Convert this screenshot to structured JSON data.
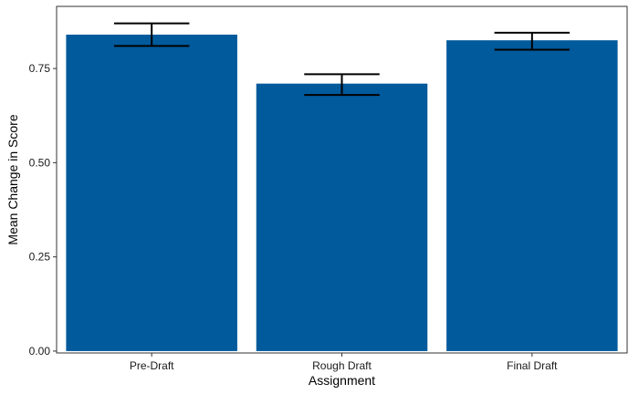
{
  "chart_data": {
    "type": "bar",
    "title": "",
    "xlabel": "Assignment",
    "ylabel": "Mean Change in Score",
    "categories": [
      "Pre-Draft",
      "Rough Draft",
      "Final Draft"
    ],
    "values": [
      0.84,
      0.71,
      0.825
    ],
    "error_low": [
      0.81,
      0.68,
      0.8
    ],
    "error_high": [
      0.87,
      0.735,
      0.845
    ],
    "ylim": [
      -0.005,
      0.915
    ],
    "yticks": [
      0,
      0.25,
      0.5,
      0.75
    ],
    "ytick_labels": [
      "0.00",
      "0.25",
      "0.50",
      "0.75"
    ],
    "grid": false,
    "colors": {
      "bar": "#005A9C",
      "error_bar": "#000000",
      "panel_border": "#333333"
    }
  }
}
